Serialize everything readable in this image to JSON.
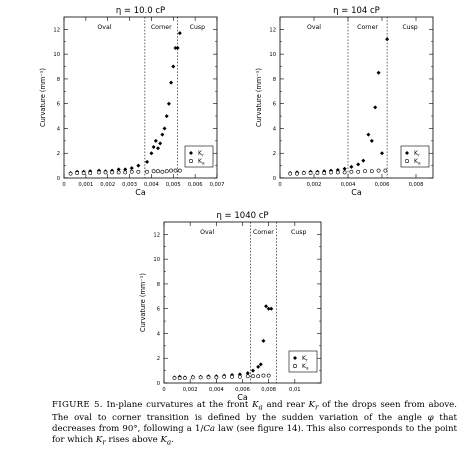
{
  "figure": {
    "caption_label": "FIGURE 5.",
    "caption_parts": [
      "In-plane curvatures at the front ",
      "K",
      "a",
      " and rear ",
      "K",
      "r",
      " of the drops seen from above. The oval to corner transition is defined by the sudden variation of the angle ",
      "φ",
      " that decreases from 90°, following a 1/",
      "Ca",
      " law (see figure 14). This also corresponds to the point for which ",
      "K",
      "r",
      " rises above ",
      "K",
      "a",
      "."
    ]
  },
  "chart_data": [
    {
      "type": "scatter",
      "title": "η = 10.0 cP",
      "xlabel": "Ca",
      "ylabel": "Curvature (mm⁻¹)",
      "xlim": [
        0,
        0.007
      ],
      "ylim": [
        0,
        13
      ],
      "xticks": [
        "0",
        "0,001",
        "0,002",
        "0,003",
        "0,004",
        "0,005",
        "0,006",
        "0,007"
      ],
      "yticks": [
        "0",
        "2",
        "4",
        "6",
        "8",
        "10",
        "12"
      ],
      "regions": [
        "Oval",
        "Corner",
        "Cusp"
      ],
      "transitions": [
        0.0037,
        0.0052
      ],
      "legend": {
        "position": "lower-right",
        "entries": [
          {
            "label": "Kr",
            "marker": "filled-diamond"
          },
          {
            "label": "Ka",
            "marker": "open-circle"
          }
        ]
      },
      "series": [
        {
          "name": "Kr",
          "marker": "filled-diamond",
          "x": [
            0.0003,
            0.0006,
            0.0009,
            0.0012,
            0.0016,
            0.0019,
            0.0022,
            0.0025,
            0.0028,
            0.0031,
            0.0034,
            0.0038,
            0.004,
            0.0041,
            0.0042,
            0.0043,
            0.0044,
            0.0045,
            0.0046,
            0.0047,
            0.0048,
            0.0049,
            0.005,
            0.0051,
            0.0052,
            0.0053
          ],
          "y": [
            0.4,
            0.5,
            0.5,
            0.55,
            0.6,
            0.55,
            0.6,
            0.7,
            0.7,
            0.8,
            1.0,
            1.3,
            2.0,
            2.5,
            3.0,
            2.4,
            2.8,
            3.5,
            4.0,
            5.0,
            6.0,
            7.7,
            9.0,
            10.5,
            10.5,
            11.7
          ]
        },
        {
          "name": "Ka",
          "marker": "open-circle",
          "x": [
            0.0003,
            0.0006,
            0.0009,
            0.0012,
            0.0016,
            0.0019,
            0.0022,
            0.0025,
            0.0028,
            0.0031,
            0.0034,
            0.0038,
            0.0041,
            0.0043,
            0.0045,
            0.0047,
            0.0049,
            0.0051,
            0.0053
          ],
          "y": [
            0.35,
            0.4,
            0.4,
            0.4,
            0.45,
            0.45,
            0.45,
            0.45,
            0.45,
            0.5,
            0.5,
            0.5,
            0.55,
            0.55,
            0.5,
            0.55,
            0.6,
            0.6,
            0.6
          ]
        }
      ]
    },
    {
      "type": "scatter",
      "title": "η = 104 cP",
      "xlabel": "Ca",
      "ylabel": "Curvature (mm⁻¹)",
      "xlim": [
        0,
        0.009
      ],
      "ylim": [
        0,
        13
      ],
      "xticks": [
        "0",
        "0,002",
        "0,004",
        "0,006",
        "0,008"
      ],
      "yticks": [
        "0",
        "2",
        "4",
        "6",
        "8",
        "10",
        "12"
      ],
      "regions": [
        "Oval",
        "Corner",
        "Cusp"
      ],
      "transitions": [
        0.004,
        0.0063
      ],
      "legend": {
        "position": "lower-right",
        "entries": [
          {
            "label": "Kr",
            "marker": "filled-diamond"
          },
          {
            "label": "Ka",
            "marker": "open-circle"
          }
        ]
      },
      "series": [
        {
          "name": "Kr",
          "marker": "filled-diamond",
          "x": [
            0.0006,
            0.001,
            0.0014,
            0.0018,
            0.0022,
            0.0026,
            0.003,
            0.0034,
            0.0038,
            0.0042,
            0.0046,
            0.0049,
            0.0052,
            0.0054,
            0.0056,
            0.0058,
            0.006,
            0.0063
          ],
          "y": [
            0.4,
            0.45,
            0.45,
            0.5,
            0.5,
            0.55,
            0.6,
            0.65,
            0.75,
            0.9,
            1.1,
            1.4,
            3.5,
            3.0,
            5.7,
            8.5,
            2.0,
            11.2
          ]
        },
        {
          "name": "Ka",
          "marker": "open-circle",
          "x": [
            0.0006,
            0.001,
            0.0014,
            0.0018,
            0.0022,
            0.0026,
            0.003,
            0.0034,
            0.0038,
            0.0042,
            0.0046,
            0.005,
            0.0054,
            0.0058,
            0.0062
          ],
          "y": [
            0.35,
            0.35,
            0.4,
            0.4,
            0.4,
            0.4,
            0.45,
            0.45,
            0.45,
            0.5,
            0.5,
            0.55,
            0.55,
            0.6,
            0.6
          ]
        }
      ]
    },
    {
      "type": "scatter",
      "title": "η = 1040 cP",
      "xlabel": "Ca",
      "ylabel": "Curvature (mm⁻¹)",
      "xlim": [
        0,
        0.012
      ],
      "ylim": [
        0,
        13
      ],
      "xticks": [
        "0",
        "0,002",
        "0,004",
        "0,006",
        "0,008",
        "0,01"
      ],
      "yticks": [
        "0",
        "2",
        "4",
        "6",
        "8",
        "10",
        "12"
      ],
      "regions": [
        "Oval",
        "Corner",
        "Cusp"
      ],
      "transitions": [
        0.0066,
        0.0086
      ],
      "legend": {
        "position": "lower-right",
        "entries": [
          {
            "label": "Kr",
            "marker": "filled-diamond"
          },
          {
            "label": "Ka",
            "marker": "open-circle"
          }
        ]
      },
      "series": [
        {
          "name": "Kr",
          "marker": "filled-diamond",
          "x": [
            0.0008,
            0.0012,
            0.0016,
            0.0022,
            0.0028,
            0.0034,
            0.004,
            0.0046,
            0.0052,
            0.0058,
            0.0064,
            0.0068,
            0.0072,
            0.0074,
            0.0076,
            0.0078,
            0.008,
            0.0082
          ],
          "y": [
            0.45,
            0.5,
            0.45,
            0.5,
            0.5,
            0.55,
            0.55,
            0.6,
            0.65,
            0.7,
            0.8,
            1.0,
            1.3,
            1.5,
            3.4,
            6.2,
            6.0,
            6.0
          ]
        },
        {
          "name": "Ka",
          "marker": "open-circle",
          "x": [
            0.0008,
            0.0012,
            0.0016,
            0.0022,
            0.0028,
            0.0034,
            0.004,
            0.0046,
            0.0052,
            0.0058,
            0.0064,
            0.0068,
            0.0072,
            0.0076,
            0.008
          ],
          "y": [
            0.4,
            0.4,
            0.4,
            0.45,
            0.45,
            0.45,
            0.45,
            0.5,
            0.5,
            0.5,
            0.55,
            0.55,
            0.55,
            0.6,
            0.6
          ]
        }
      ]
    }
  ]
}
